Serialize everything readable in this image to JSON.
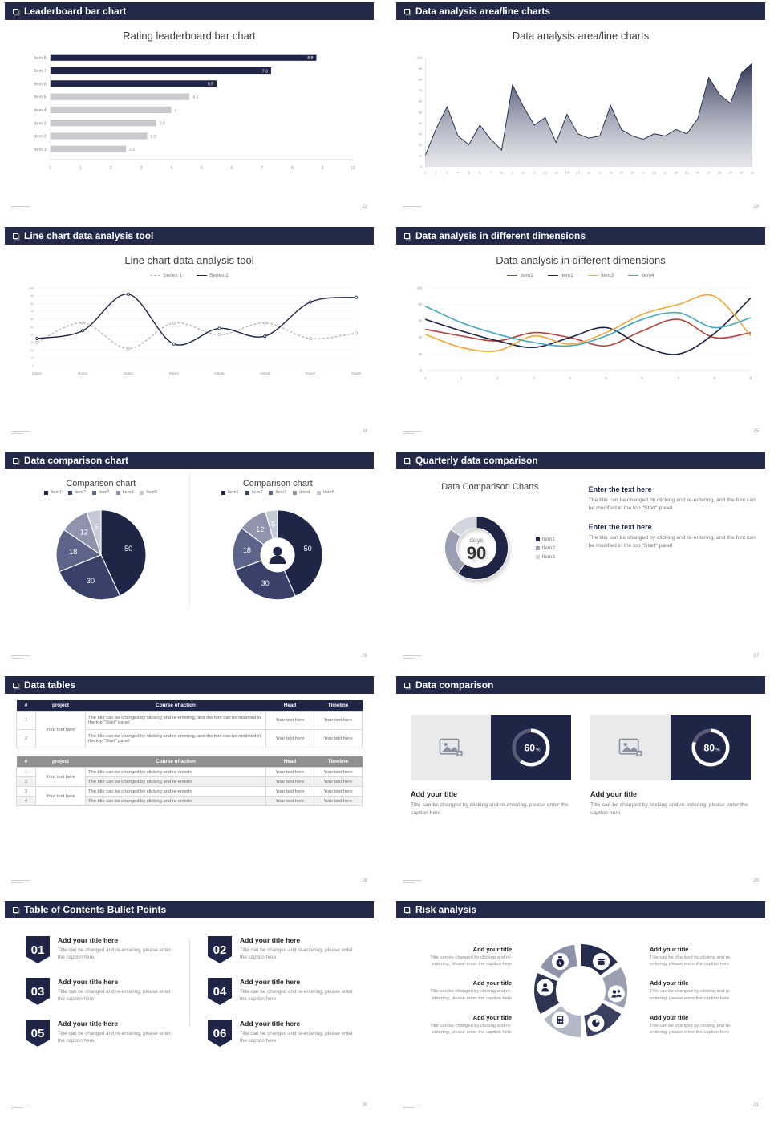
{
  "slides": {
    "s1": {
      "header": "Leaderboard bar chart",
      "page": "22",
      "chart_data": {
        "type": "bar",
        "orientation": "horizontal",
        "title": "Rating leaderboard bar chart",
        "categories": [
          "Item 1",
          "Item 2",
          "Item 3",
          "Item 4",
          "Item 5",
          "Item 6",
          "Item 7",
          "Item 8"
        ],
        "values": [
          2.5,
          3.2,
          3.5,
          4,
          4.6,
          5.5,
          7.3,
          8.8
        ],
        "value_labels": [
          "2.5",
          "3.2",
          "3.5",
          "4",
          "4.6",
          "5.5",
          "7.3",
          "8.8"
        ],
        "xticks": [
          0,
          1,
          2,
          3,
          4,
          5,
          6,
          7,
          8,
          9,
          10
        ],
        "xlim": [
          0,
          10
        ],
        "highlight_from_index": 5,
        "colors": {
          "highlight": "#1f2547",
          "normal": "#c9c9cd",
          "value_in": "#ffffff",
          "value_out": "#9a9a9a"
        }
      }
    },
    "s2": {
      "header": "Data analysis area/line charts",
      "page": "23",
      "chart_data": {
        "type": "area",
        "title": "Data analysis area/line charts",
        "x": [
          1,
          2,
          3,
          4,
          5,
          6,
          7,
          8,
          9,
          10,
          11,
          12,
          13,
          14,
          15,
          16,
          17,
          18,
          19,
          20,
          21,
          22,
          23,
          24,
          25,
          26,
          27,
          28,
          29,
          30,
          31
        ],
        "values": [
          10,
          35,
          55,
          28,
          20,
          38,
          25,
          15,
          75,
          55,
          38,
          45,
          22,
          48,
          30,
          26,
          28,
          56,
          34,
          28,
          25,
          30,
          28,
          34,
          30,
          44,
          82,
          66,
          58,
          86,
          95
        ],
        "ylim": [
          0,
          100
        ],
        "yticks": [
          0,
          10,
          20,
          30,
          40,
          50,
          60,
          70,
          80,
          90,
          100
        ],
        "line_color": "#1f2547",
        "fill_top": "#262c4e",
        "fill_bottom": "#c6c9d4"
      }
    },
    "s3": {
      "header": "Line chart data analysis tool",
      "page": "24",
      "chart_data": {
        "type": "line",
        "title": "Line chart data analysis tool",
        "categories": [
          "Data1",
          "Data2",
          "Data3",
          "Data4",
          "Data5",
          "Data6",
          "Data7",
          "Data8"
        ],
        "ylim": [
          0,
          100
        ],
        "yticks": [
          0,
          10,
          20,
          30,
          40,
          50,
          60,
          70,
          80,
          90,
          100
        ],
        "series": [
          {
            "name": "Series 1",
            "color": "#b9b9bd",
            "dashed": true,
            "values": [
              30,
              55,
              22,
              55,
              40,
              55,
              35,
              42
            ]
          },
          {
            "name": "Series 2",
            "color": "#1f2547",
            "dashed": false,
            "values": [
              35,
              45,
              92,
              28,
              48,
              38,
              82,
              88
            ]
          }
        ]
      }
    },
    "s4": {
      "header": "Data analysis in different dimensions",
      "page": "25",
      "chart_data": {
        "type": "line",
        "title": "Data analysis in different dimensions",
        "x": [
          0,
          1,
          2,
          3,
          4,
          5,
          6,
          7,
          8,
          9
        ],
        "ylim": [
          0,
          100
        ],
        "yticks": [
          0,
          20,
          40,
          60,
          80,
          100
        ],
        "series": [
          {
            "name": "Item1",
            "color": "#b5433a",
            "values": [
              50,
              42,
              36,
              46,
              40,
              30,
              48,
              62,
              40,
              46
            ]
          },
          {
            "name": "Item2",
            "color": "#1d2340",
            "values": [
              62,
              48,
              36,
              28,
              40,
              52,
              30,
              20,
              45,
              88
            ]
          },
          {
            "name": "Item3",
            "color": "#efa83c",
            "values": [
              44,
              28,
              24,
              42,
              32,
              46,
              68,
              80,
              90,
              42
            ]
          },
          {
            "name": "Item4",
            "color": "#3fa8c0",
            "values": [
              78,
              58,
              44,
              34,
              30,
              42,
              62,
              70,
              52,
              64
            ]
          }
        ]
      }
    },
    "s5": {
      "header": "Data comparison chart",
      "page": "26",
      "charts": [
        {
          "type": "pie",
          "title": "Comparison chart",
          "legend": [
            "Item1",
            "Item2",
            "Item3",
            "Item4",
            "Item5"
          ],
          "values": [
            50,
            30,
            18,
            12,
            6
          ],
          "labels": [
            "50",
            "30",
            "18",
            "12",
            "6"
          ],
          "colors": [
            "#1f2547",
            "#39406a",
            "#5d648a",
            "#8f94ac",
            "#c6c9d6"
          ]
        },
        {
          "type": "donut",
          "title": "Comparison chart",
          "legend": [
            "Item1",
            "Item2",
            "Item3",
            "Item4",
            "Item5"
          ],
          "values": [
            50,
            30,
            18,
            12,
            5
          ],
          "labels": [
            "50",
            "30",
            "18",
            "12",
            "5"
          ],
          "colors": [
            "#1f2547",
            "#39406a",
            "#5d648a",
            "#8f94ac",
            "#c6c9d6"
          ],
          "center_icon": "businessman-icon"
        }
      ]
    },
    "s6": {
      "header": "Quarterly data comparison",
      "page": "27",
      "chart_data": {
        "type": "donut",
        "title": "Data Comparison Charts",
        "values": [
          60,
          25,
          15
        ],
        "colors": [
          "#1f2547",
          "#9aa0b2",
          "#d3d5de"
        ],
        "legend": [
          "Item1",
          "Item2",
          "Item3"
        ],
        "center_label": "days",
        "center_value": "90"
      },
      "blocks": [
        {
          "heading": "Enter the text here",
          "body": "The title can be changed by clicking and re-entering, and the font can be modified in the top \"Start\" panel"
        },
        {
          "heading": "Enter the text here",
          "body": "The title can be changed by clicking and re-entering, and the font can be modified in the top \"Start\" panel"
        }
      ]
    },
    "s7": {
      "header": "Data tables",
      "page": "28",
      "table1": {
        "columns": [
          "#",
          "project",
          "Course of action",
          "Head",
          "Timeline"
        ],
        "project": "Your text here",
        "rows": [
          {
            "num": "1",
            "course": "The title can be changed by clicking and re-entering, and the font can be modified in the top \"Start\" panel",
            "head": "Your text here",
            "timeline": "Your text here"
          },
          {
            "num": "2",
            "course": "The title can be changed by clicking and re-entering, and the font can be modified in the top \"Start\" panel",
            "head": "Your text here",
            "timeline": "Your text here"
          }
        ]
      },
      "table2": {
        "columns": [
          "#",
          "project",
          "Course of action",
          "Head",
          "Timeline"
        ],
        "projects": [
          "Your text here",
          "Your text here"
        ],
        "rows": [
          {
            "num": "1",
            "course": "The title can be changed by clicking and re-enterin",
            "head": "Your text here",
            "timeline": "Your text here"
          },
          {
            "num": "2",
            "course": "The title can be changed by clicking and re-enterin",
            "head": "Your text here",
            "timeline": "Your text here"
          },
          {
            "num": "3",
            "course": "The title can be changed by clicking and re-enterin",
            "head": "Your text here",
            "timeline": "Your text here"
          },
          {
            "num": "4",
            "course": "The title can be changed by clicking and re-enterin",
            "head": "Your text here",
            "timeline": "Your text here"
          }
        ]
      }
    },
    "s8": {
      "header": "Data comparison",
      "page": "29",
      "panels": [
        {
          "percent": "60",
          "percent_sign": "%",
          "title": "Add your title",
          "caption": "Title can be changed by clicking and re-entering, please enter the caption here"
        },
        {
          "percent": "80",
          "percent_sign": "%",
          "title": "Add your title",
          "caption": "Title can be changed by clicking and re-entering, please enter the caption here"
        }
      ]
    },
    "s9": {
      "header": "Table of Contents Bullet Points",
      "page": "30",
      "items": [
        {
          "num": "01",
          "title": "Add your title here",
          "caption": "Title can be changed and re-entering, please enter the caption here"
        },
        {
          "num": "02",
          "title": "Add your title here",
          "caption": "Title can be changed and re-entering, please enter the caption here"
        },
        {
          "num": "03",
          "title": "Add your title here",
          "caption": "Title can be changed and re-entering, please enter the caption here"
        },
        {
          "num": "04",
          "title": "Add your title here",
          "caption": "Title can be changed and re-entering, please enter the caption here"
        },
        {
          "num": "05",
          "title": "Add your title here",
          "caption": "Title can be changed and re-entering, please enter the caption here"
        },
        {
          "num": "06",
          "title": "Add your title here",
          "caption": "Title can be changed and re-entering, please enter the caption here"
        }
      ]
    },
    "s10": {
      "header": "Risk analysis",
      "page": "31",
      "wheel": {
        "colors": [
          "#262c4e",
          "#9aa0b2",
          "#3a4160",
          "#b3b8c6",
          "#2e3454",
          "#8d93a8"
        ],
        "icons": [
          "money-bag",
          "coins",
          "users",
          "pie-chart",
          "calculator",
          "user"
        ]
      },
      "blocks_left": [
        {
          "title": "Add your title",
          "caption": "Title can be changed by clicking and re-entering, please enter the caption here"
        },
        {
          "title": "Add your title",
          "caption": "Title can be changed by clicking and re-entering, please enter the caption here"
        },
        {
          "title": "Add your title",
          "caption": "Title can be changed by clicking and re-entering, please enter the caption here"
        }
      ],
      "blocks_right": [
        {
          "title": "Add your title",
          "caption": "Title can be changed by clicking and re-entering, please enter the caption here"
        },
        {
          "title": "Add your title",
          "caption": "Title can be changed by clicking and re-entering, please enter the caption here"
        },
        {
          "title": "Add your title",
          "caption": "Title can be changed by clicking and re-entering, please enter the caption here"
        }
      ]
    }
  }
}
